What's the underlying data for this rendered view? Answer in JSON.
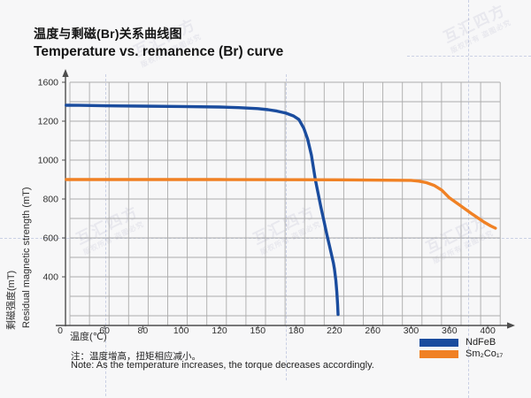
{
  "header": {
    "title_zh": "温度与剩磁(Br)关系曲线图",
    "title_en": "Temperature vs. remanence (Br) curve"
  },
  "axes": {
    "x_label": "温度(℃)",
    "y_label_zh": "剩磁强度(mT)",
    "y_label_en": "Residual magnetic strength (mT)",
    "origin_label": "0"
  },
  "legend": [
    {
      "name": "NdFeB",
      "color": "#1a4c9e"
    },
    {
      "name": "Sm₂Co₁₇",
      "color": "#f08124"
    }
  ],
  "notes": {
    "zh": "注：温度增高，扭矩相应减小。",
    "en": "Note: As the temperature increases, the torque decreases accordingly."
  },
  "watermark": {
    "main": "互汇四方",
    "sub": "版权所有 盗图必究"
  },
  "colors": {
    "grid": "#ababab",
    "axis": "#4d4d4d",
    "tick_text": "#2f2f2f",
    "background": "#f7f7f8"
  },
  "chart_data": {
    "type": "line",
    "title": "Temperature vs. remanence (Br) curve / 温度与剩磁(Br)关系曲线图",
    "xlabel": "温度(℃)",
    "ylabel": "Residual magnetic strength 剩磁强度 (mT)",
    "x_ticks": [
      0,
      60,
      80,
      100,
      120,
      150,
      180,
      220,
      260,
      300,
      360,
      400
    ],
    "y_ticks": [
      1600,
      1200,
      1000,
      800,
      600,
      400
    ],
    "ylim": [
      0,
      1600
    ],
    "xlim": [
      0,
      400
    ],
    "grid": true,
    "legend_position": "bottom-right",
    "series": [
      {
        "name": "NdFeB",
        "color": "#1a4c9e",
        "points": [
          [
            0,
            1364
          ],
          [
            20,
            1363
          ],
          [
            40,
            1361
          ],
          [
            60,
            1358
          ],
          [
            80,
            1355
          ],
          [
            100,
            1351
          ],
          [
            120,
            1345
          ],
          [
            135,
            1339
          ],
          [
            150,
            1329
          ],
          [
            158,
            1318
          ],
          [
            165,
            1304
          ],
          [
            172,
            1283
          ],
          [
            178,
            1254
          ],
          [
            183,
            1216
          ],
          [
            188,
            1163
          ],
          [
            192,
            1108
          ],
          [
            196,
            1025
          ],
          [
            200,
            900
          ],
          [
            203,
            828
          ],
          [
            206,
            756
          ],
          [
            209,
            688
          ],
          [
            212,
            620
          ],
          [
            215,
            556
          ],
          [
            217,
            512
          ],
          [
            219,
            470
          ],
          [
            220,
            440
          ],
          [
            221.5,
            370
          ],
          [
            222.5,
            275
          ],
          [
            223.3,
            170
          ],
          [
            223.8,
            90
          ]
        ]
      },
      {
        "name": "Sm₂Co₁₇",
        "color": "#f08124",
        "points": [
          [
            0,
            900
          ],
          [
            60,
            900
          ],
          [
            120,
            900
          ],
          [
            180,
            899
          ],
          [
            240,
            898
          ],
          [
            300,
            896
          ],
          [
            312,
            892
          ],
          [
            324,
            884
          ],
          [
            336,
            870
          ],
          [
            348,
            846
          ],
          [
            360,
            806
          ],
          [
            372,
            764
          ],
          [
            384,
            722
          ],
          [
            396,
            682
          ],
          [
            403,
            662
          ],
          [
            408,
            650
          ]
        ]
      }
    ],
    "annotation": "NdFeB stays ≈1360 mT up to ≈150℃ then falls steeply to ≈0 just past 220℃; Sm₂Co₁₇ holds ≈900 mT until ≈310℃ then declines to ≈650 mT at 400℃"
  }
}
